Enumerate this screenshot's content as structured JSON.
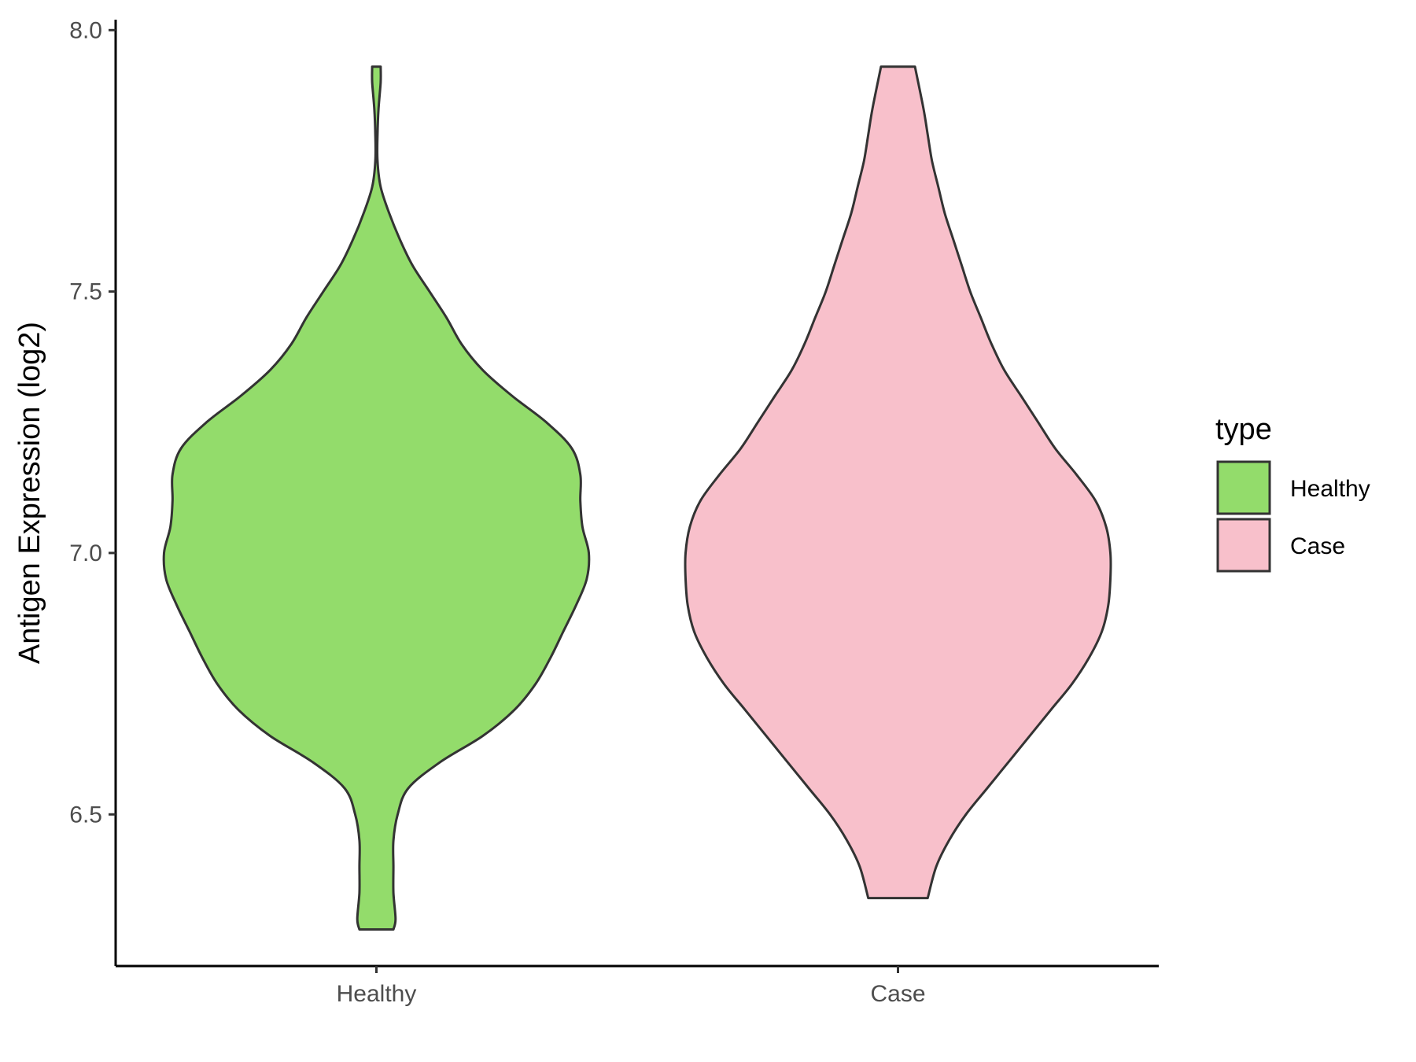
{
  "chart_data": {
    "type": "violin",
    "title": "",
    "xlabel": "",
    "ylabel": "Antigen Expression (log2)",
    "ylim": [
      6.21,
      8.02
    ],
    "yticks": [
      "6.5",
      "7.0",
      "7.5",
      "8.0"
    ],
    "categories": [
      "Healthy",
      "Case"
    ],
    "legend": {
      "title": "type",
      "position": "right",
      "entries": [
        "Healthy",
        "Case"
      ]
    },
    "grid": false,
    "series": [
      {
        "name": "Healthy",
        "color": "#93dc6b",
        "range": [
          6.28,
          7.93
        ],
        "profile": [
          [
            6.28,
            0.08
          ],
          [
            6.3,
            0.09
          ],
          [
            6.35,
            0.08
          ],
          [
            6.4,
            0.08
          ],
          [
            6.45,
            0.08
          ],
          [
            6.5,
            0.1
          ],
          [
            6.55,
            0.15
          ],
          [
            6.6,
            0.3
          ],
          [
            6.65,
            0.5
          ],
          [
            6.7,
            0.65
          ],
          [
            6.75,
            0.75
          ],
          [
            6.8,
            0.82
          ],
          [
            6.85,
            0.88
          ],
          [
            6.9,
            0.94
          ],
          [
            6.95,
            0.99
          ],
          [
            7.0,
            1.0
          ],
          [
            7.05,
            0.97
          ],
          [
            7.1,
            0.96
          ],
          [
            7.15,
            0.96
          ],
          [
            7.2,
            0.92
          ],
          [
            7.25,
            0.8
          ],
          [
            7.3,
            0.64
          ],
          [
            7.35,
            0.5
          ],
          [
            7.4,
            0.4
          ],
          [
            7.45,
            0.33
          ],
          [
            7.5,
            0.25
          ],
          [
            7.55,
            0.17
          ],
          [
            7.6,
            0.11
          ],
          [
            7.65,
            0.06
          ],
          [
            7.7,
            0.02
          ],
          [
            7.75,
            0.005
          ],
          [
            7.8,
            0.005
          ],
          [
            7.85,
            0.01
          ],
          [
            7.9,
            0.02
          ],
          [
            7.93,
            0.02
          ]
        ]
      },
      {
        "name": "Case",
        "color": "#f8c0cb",
        "range": [
          6.34,
          7.93
        ],
        "profile": [
          [
            6.34,
            0.14
          ],
          [
            6.4,
            0.18
          ],
          [
            6.45,
            0.24
          ],
          [
            6.5,
            0.32
          ],
          [
            6.55,
            0.42
          ],
          [
            6.6,
            0.52
          ],
          [
            6.65,
            0.62
          ],
          [
            6.7,
            0.72
          ],
          [
            6.75,
            0.82
          ],
          [
            6.8,
            0.9
          ],
          [
            6.85,
            0.96
          ],
          [
            6.9,
            0.99
          ],
          [
            6.95,
            1.0
          ],
          [
            7.0,
            1.0
          ],
          [
            7.05,
            0.98
          ],
          [
            7.1,
            0.93
          ],
          [
            7.15,
            0.84
          ],
          [
            7.2,
            0.74
          ],
          [
            7.25,
            0.66
          ],
          [
            7.3,
            0.58
          ],
          [
            7.35,
            0.5
          ],
          [
            7.4,
            0.44
          ],
          [
            7.45,
            0.39
          ],
          [
            7.5,
            0.34
          ],
          [
            7.55,
            0.3
          ],
          [
            7.6,
            0.26
          ],
          [
            7.65,
            0.22
          ],
          [
            7.7,
            0.19
          ],
          [
            7.75,
            0.16
          ],
          [
            7.8,
            0.14
          ],
          [
            7.85,
            0.12
          ],
          [
            7.93,
            0.08
          ]
        ]
      }
    ]
  }
}
